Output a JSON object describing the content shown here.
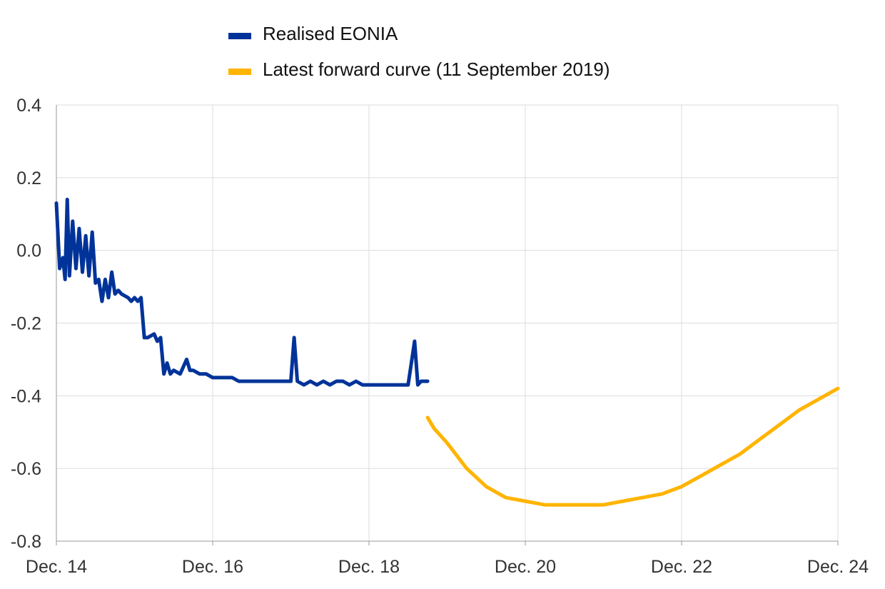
{
  "chart_data": {
    "type": "line",
    "title": "",
    "xlabel": "",
    "ylabel": "",
    "xlim": [
      "2014-12",
      "2024-12"
    ],
    "ylim": [
      -0.8,
      0.4
    ],
    "y_ticks": [
      0.4,
      0.2,
      0.0,
      -0.2,
      -0.4,
      -0.6,
      -0.8
    ],
    "y_tick_labels": [
      "0.4",
      "0.2",
      "0.0",
      "-0.2",
      "-0.4",
      "-0.6",
      "-0.8"
    ],
    "x_tick_labels": [
      "Dec. 14",
      "Dec. 16",
      "Dec. 18",
      "Dec. 20",
      "Dec. 22",
      "Dec. 24"
    ],
    "grid": true,
    "legend_position": "top-left",
    "series": [
      {
        "name": "Realised EONIA",
        "color": "#003399",
        "points": [
          [
            "2014-12",
            0.13
          ],
          [
            "2014-12",
            -0.05
          ],
          [
            "2015-01",
            -0.02
          ],
          [
            "2015-01",
            -0.08
          ],
          [
            "2015-01",
            0.14
          ],
          [
            "2015-02",
            -0.07
          ],
          [
            "2015-02",
            0.08
          ],
          [
            "2015-03",
            -0.05
          ],
          [
            "2015-03",
            0.06
          ],
          [
            "2015-04",
            -0.06
          ],
          [
            "2015-04",
            0.04
          ],
          [
            "2015-05",
            -0.07
          ],
          [
            "2015-05",
            0.05
          ],
          [
            "2015-06",
            -0.09
          ],
          [
            "2015-06",
            -0.08
          ],
          [
            "2015-07",
            -0.14
          ],
          [
            "2015-07",
            -0.08
          ],
          [
            "2015-08",
            -0.13
          ],
          [
            "2015-08",
            -0.06
          ],
          [
            "2015-09",
            -0.12
          ],
          [
            "2015-09",
            -0.11
          ],
          [
            "2015-10",
            -0.12
          ],
          [
            "2015-11",
            -0.13
          ],
          [
            "2015-11",
            -0.14
          ],
          [
            "2015-12",
            -0.13
          ],
          [
            "2015-12",
            -0.14
          ],
          [
            "2016-01",
            -0.13
          ],
          [
            "2016-01",
            -0.24
          ],
          [
            "2016-02",
            -0.24
          ],
          [
            "2016-03",
            -0.23
          ],
          [
            "2016-03",
            -0.25
          ],
          [
            "2016-04",
            -0.24
          ],
          [
            "2016-04",
            -0.34
          ],
          [
            "2016-05",
            -0.31
          ],
          [
            "2016-05",
            -0.34
          ],
          [
            "2016-06",
            -0.33
          ],
          [
            "2016-07",
            -0.34
          ],
          [
            "2016-08",
            -0.3
          ],
          [
            "2016-08",
            -0.33
          ],
          [
            "2016-09",
            -0.33
          ],
          [
            "2016-10",
            -0.34
          ],
          [
            "2016-11",
            -0.34
          ],
          [
            "2016-12",
            -0.35
          ],
          [
            "2017-01",
            -0.35
          ],
          [
            "2017-02",
            -0.35
          ],
          [
            "2017-03",
            -0.35
          ],
          [
            "2017-04",
            -0.36
          ],
          [
            "2017-05",
            -0.36
          ],
          [
            "2017-06",
            -0.36
          ],
          [
            "2017-07",
            -0.36
          ],
          [
            "2017-08",
            -0.36
          ],
          [
            "2017-09",
            -0.36
          ],
          [
            "2017-10",
            -0.36
          ],
          [
            "2017-11",
            -0.36
          ],
          [
            "2017-12",
            -0.36
          ],
          [
            "2017-12",
            -0.24
          ],
          [
            "2018-01",
            -0.36
          ],
          [
            "2018-02",
            -0.37
          ],
          [
            "2018-03",
            -0.36
          ],
          [
            "2018-04",
            -0.37
          ],
          [
            "2018-05",
            -0.36
          ],
          [
            "2018-06",
            -0.37
          ],
          [
            "2018-07",
            -0.36
          ],
          [
            "2018-08",
            -0.36
          ],
          [
            "2018-09",
            -0.37
          ],
          [
            "2018-10",
            -0.36
          ],
          [
            "2018-11",
            -0.37
          ],
          [
            "2018-12",
            -0.37
          ],
          [
            "2019-01",
            -0.37
          ],
          [
            "2019-02",
            -0.37
          ],
          [
            "2019-03",
            -0.37
          ],
          [
            "2019-04",
            -0.37
          ],
          [
            "2019-05",
            -0.37
          ],
          [
            "2019-06",
            -0.37
          ],
          [
            "2019-07",
            -0.25
          ],
          [
            "2019-07",
            -0.37
          ],
          [
            "2019-08",
            -0.36
          ],
          [
            "2019-09",
            -0.36
          ]
        ]
      },
      {
        "name": "Latest forward curve (11 September 2019)",
        "color": "#FFB400",
        "points": [
          [
            "2019-09",
            -0.46
          ],
          [
            "2019-10",
            -0.49
          ],
          [
            "2019-12",
            -0.53
          ],
          [
            "2020-03",
            -0.6
          ],
          [
            "2020-06",
            -0.65
          ],
          [
            "2020-09",
            -0.68
          ],
          [
            "2020-12",
            -0.69
          ],
          [
            "2021-03",
            -0.7
          ],
          [
            "2021-06",
            -0.7
          ],
          [
            "2021-09",
            -0.7
          ],
          [
            "2021-12",
            -0.7
          ],
          [
            "2022-03",
            -0.69
          ],
          [
            "2022-06",
            -0.68
          ],
          [
            "2022-09",
            -0.67
          ],
          [
            "2022-12",
            -0.65
          ],
          [
            "2023-03",
            -0.62
          ],
          [
            "2023-06",
            -0.59
          ],
          [
            "2023-09",
            -0.56
          ],
          [
            "2023-12",
            -0.52
          ],
          [
            "2024-03",
            -0.48
          ],
          [
            "2024-06",
            -0.44
          ],
          [
            "2024-09",
            -0.41
          ],
          [
            "2024-12",
            -0.38
          ]
        ]
      }
    ]
  }
}
